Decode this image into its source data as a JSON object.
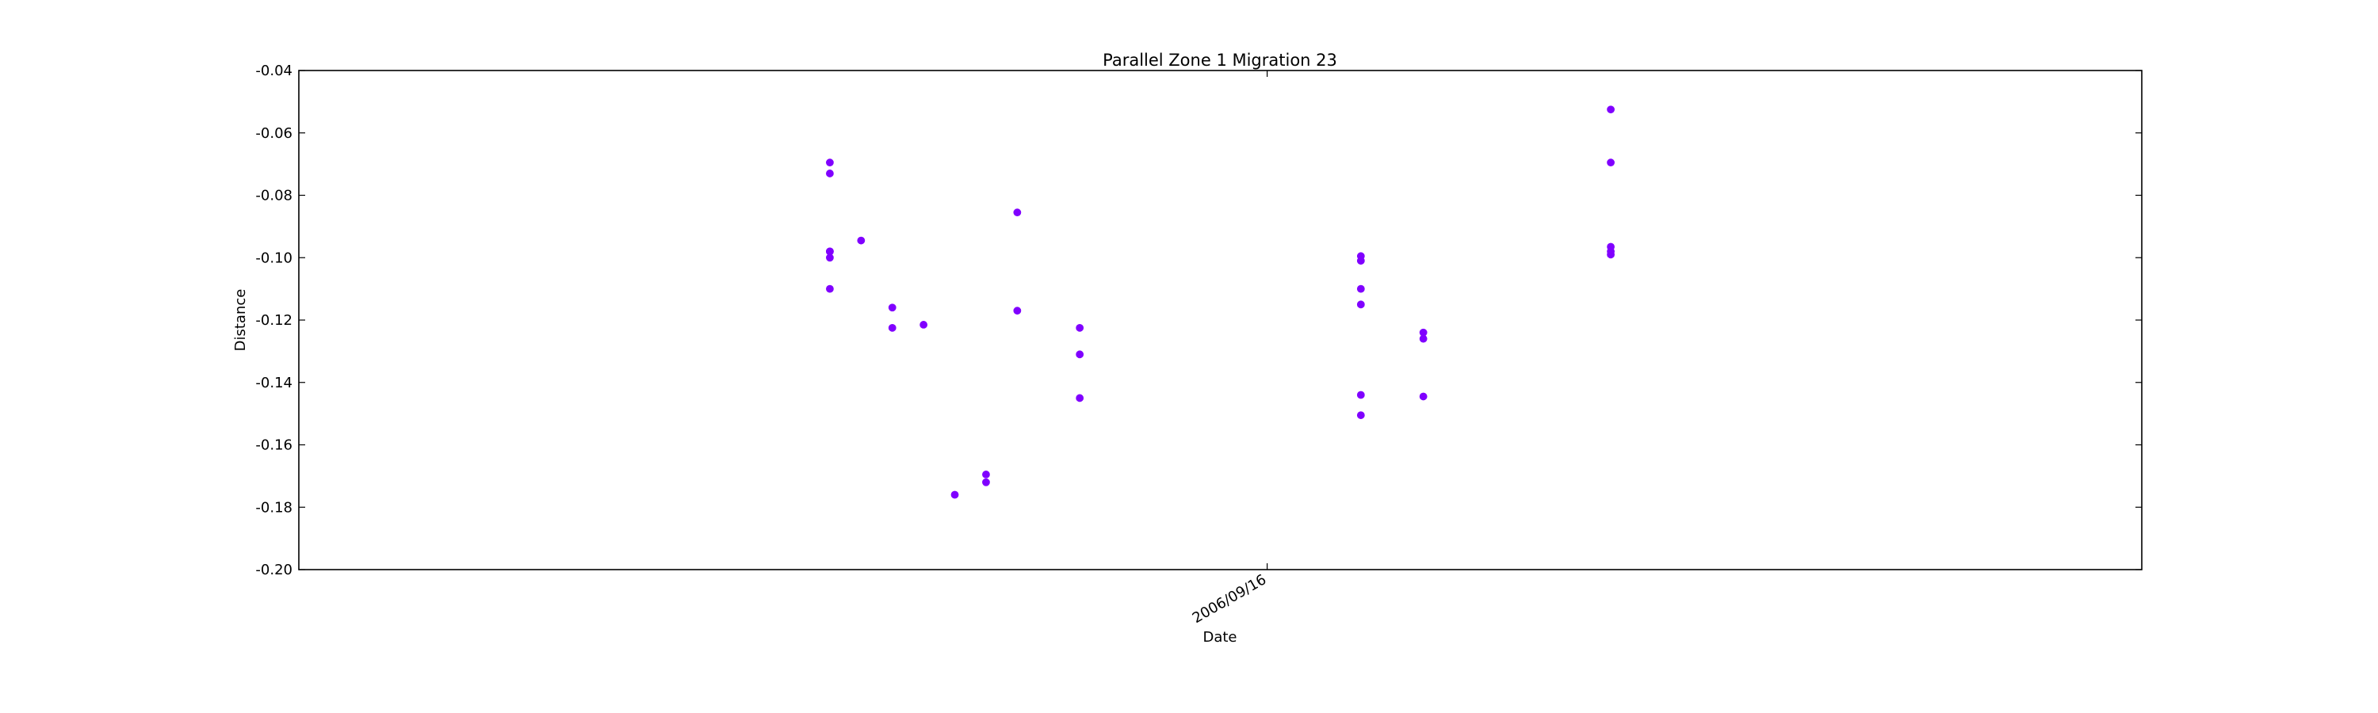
{
  "chart_data": {
    "type": "scatter",
    "title": "Parallel Zone 1 Migration 23",
    "xlabel": "Date",
    "ylabel": "Distance",
    "x_ticks": [
      "2006/09/16"
    ],
    "y_ticks": [
      "-0.04",
      "-0.06",
      "-0.08",
      "-0.10",
      "-0.12",
      "-0.14",
      "-0.16",
      "-0.18",
      "-0.20"
    ],
    "ylim": [
      -0.2,
      -0.04
    ],
    "xlim": [
      "2006/08/16",
      "2006/10/14"
    ],
    "grid": false,
    "marker_color": "#8000ff",
    "points": [
      {
        "x": "2006/09/02",
        "y": -0.0695
      },
      {
        "x": "2006/09/02",
        "y": -0.073
      },
      {
        "x": "2006/09/02",
        "y": -0.098
      },
      {
        "x": "2006/09/02",
        "y": -0.098
      },
      {
        "x": "2006/09/02",
        "y": -0.1
      },
      {
        "x": "2006/09/02",
        "y": -0.11
      },
      {
        "x": "2006/09/03",
        "y": -0.0945
      },
      {
        "x": "2006/09/04",
        "y": -0.116
      },
      {
        "x": "2006/09/04",
        "y": -0.1225
      },
      {
        "x": "2006/09/05",
        "y": -0.1215
      },
      {
        "x": "2006/09/06",
        "y": -0.176
      },
      {
        "x": "2006/09/07",
        "y": -0.1695
      },
      {
        "x": "2006/09/07",
        "y": -0.172
      },
      {
        "x": "2006/09/08",
        "y": -0.0855
      },
      {
        "x": "2006/09/08",
        "y": -0.117
      },
      {
        "x": "2006/09/10",
        "y": -0.1225
      },
      {
        "x": "2006/09/10",
        "y": -0.131
      },
      {
        "x": "2006/09/10",
        "y": -0.145
      },
      {
        "x": "2006/09/19",
        "y": -0.0995
      },
      {
        "x": "2006/09/19",
        "y": -0.101
      },
      {
        "x": "2006/09/19",
        "y": -0.11
      },
      {
        "x": "2006/09/19",
        "y": -0.115
      },
      {
        "x": "2006/09/19",
        "y": -0.144
      },
      {
        "x": "2006/09/19",
        "y": -0.1505
      },
      {
        "x": "2006/09/21",
        "y": -0.124
      },
      {
        "x": "2006/09/21",
        "y": -0.126
      },
      {
        "x": "2006/09/21",
        "y": -0.1445
      },
      {
        "x": "2006/09/27",
        "y": -0.0525
      },
      {
        "x": "2006/09/27",
        "y": -0.0695
      },
      {
        "x": "2006/09/27",
        "y": -0.0965
      },
      {
        "x": "2006/09/27",
        "y": -0.098
      },
      {
        "x": "2006/09/27",
        "y": -0.099
      }
    ]
  }
}
